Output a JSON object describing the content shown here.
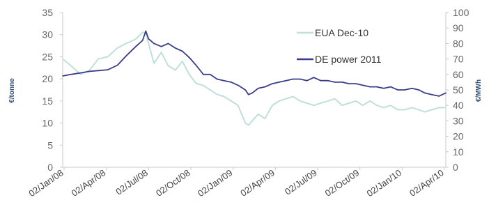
{
  "chart_data": {
    "type": "line",
    "title": "",
    "ylabel": "€/tonne",
    "y2label": "€/MWh",
    "ylim": [
      0,
      35
    ],
    "y2lim": [
      0,
      100
    ],
    "y_ticks": [
      "0",
      "5",
      "10",
      "15",
      "20",
      "25",
      "30",
      "35"
    ],
    "y2_ticks": [
      "0",
      "10",
      "20",
      "30",
      "40",
      "50",
      "60",
      "70",
      "80",
      "90",
      "100"
    ],
    "x_tick_labels": [
      "02/Jan/08",
      "02/Apr/08",
      "02/Jul/08",
      "02/Oct/08",
      "02/Jan/09",
      "02/Apr/09",
      "02/Jul/09",
      "02/Oct/09",
      "02/Jan/10",
      "02/Apr/10"
    ],
    "x_range": [
      "2008-01-02",
      "2010-04-20"
    ],
    "grid": false,
    "legend_position": "top-right",
    "series": [
      {
        "name": "EUA Dec-10",
        "axis": "left",
        "color": "#bfe0d9",
        "x": [
          "2008-01-02",
          "2008-01-20",
          "2008-02-10",
          "2008-03-01",
          "2008-03-20",
          "2008-04-10",
          "2008-05-01",
          "2008-05-20",
          "2008-06-10",
          "2008-06-25",
          "2008-07-02",
          "2008-07-08",
          "2008-07-20",
          "2008-08-05",
          "2008-08-20",
          "2008-09-05",
          "2008-09-20",
          "2008-10-05",
          "2008-10-20",
          "2008-11-05",
          "2008-11-20",
          "2008-12-05",
          "2008-12-20",
          "2009-01-05",
          "2009-01-20",
          "2009-02-05",
          "2009-02-12",
          "2009-02-20",
          "2009-03-05",
          "2009-03-20",
          "2009-04-05",
          "2009-04-20",
          "2009-05-05",
          "2009-05-20",
          "2009-06-05",
          "2009-06-20",
          "2009-07-05",
          "2009-07-20",
          "2009-08-05",
          "2009-08-20",
          "2009-09-05",
          "2009-09-20",
          "2009-10-05",
          "2009-10-20",
          "2009-11-05",
          "2009-11-20",
          "2009-12-05",
          "2009-12-20",
          "2010-01-05",
          "2010-01-20",
          "2010-02-05",
          "2010-02-20",
          "2010-03-05",
          "2010-03-20",
          "2010-04-05",
          "2010-04-20"
        ],
        "values": [
          24.5,
          23,
          21,
          22,
          24.5,
          25,
          27,
          28,
          29,
          30.5,
          30.5,
          28,
          23.5,
          26,
          23,
          22,
          24,
          21,
          19,
          18.5,
          17.5,
          16.5,
          16,
          15,
          14,
          10,
          9.5,
          10.5,
          12,
          11,
          14,
          15,
          15.5,
          16,
          15,
          14.5,
          14,
          14.5,
          15,
          15.5,
          14,
          14.5,
          15,
          14,
          15,
          14,
          13.5,
          14,
          13,
          13,
          13.5,
          13,
          12.5,
          13,
          13.5,
          13.5
        ]
      },
      {
        "name": "DE power 2011",
        "axis": "right",
        "color": "#3b3b8c",
        "x": [
          "2008-01-02",
          "2008-01-20",
          "2008-02-10",
          "2008-03-01",
          "2008-03-20",
          "2008-04-10",
          "2008-05-01",
          "2008-05-20",
          "2008-06-10",
          "2008-06-25",
          "2008-07-02",
          "2008-07-08",
          "2008-07-20",
          "2008-08-05",
          "2008-08-20",
          "2008-09-05",
          "2008-09-20",
          "2008-10-05",
          "2008-10-20",
          "2008-11-05",
          "2008-11-20",
          "2008-12-05",
          "2008-12-20",
          "2009-01-05",
          "2009-01-20",
          "2009-02-05",
          "2009-02-12",
          "2009-02-20",
          "2009-03-05",
          "2009-03-20",
          "2009-04-05",
          "2009-04-20",
          "2009-05-05",
          "2009-05-20",
          "2009-06-05",
          "2009-06-20",
          "2009-07-05",
          "2009-07-20",
          "2009-08-05",
          "2009-08-20",
          "2009-09-05",
          "2009-09-20",
          "2009-10-05",
          "2009-10-20",
          "2009-11-05",
          "2009-11-20",
          "2009-12-05",
          "2009-12-20",
          "2010-01-05",
          "2010-01-20",
          "2010-02-05",
          "2010-02-20",
          "2010-03-05",
          "2010-03-20",
          "2010-04-05",
          "2010-04-20"
        ],
        "values": [
          59,
          60,
          61,
          62,
          62.5,
          63,
          66,
          72,
          78,
          82,
          88,
          83,
          80,
          78,
          80,
          77,
          75,
          71,
          66,
          60,
          60,
          57,
          56,
          55,
          53,
          50,
          47,
          48,
          51,
          52,
          54,
          55,
          56,
          57,
          57,
          56,
          58,
          56,
          56,
          55,
          55,
          54,
          54,
          53,
          52,
          52,
          51,
          52,
          50,
          50,
          51,
          50,
          48,
          47,
          46,
          48
        ]
      }
    ]
  }
}
